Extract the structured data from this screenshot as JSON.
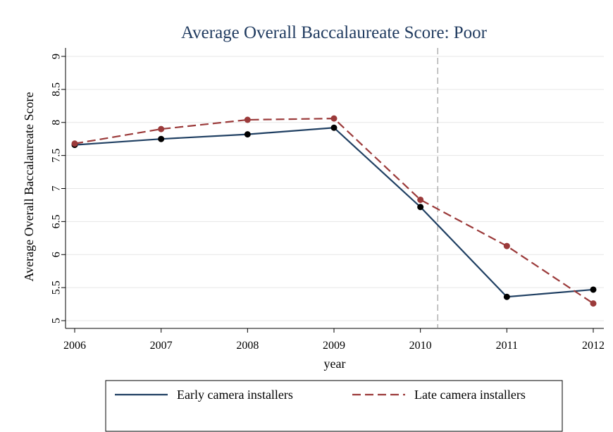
{
  "chart_data": {
    "type": "line",
    "title": "Average Overall Baccalaureate Score: Poor",
    "xlabel": "year",
    "ylabel": "Average Overall Baccalaureate Score",
    "x": [
      2006,
      2007,
      2008,
      2009,
      2010,
      2011,
      2012
    ],
    "xticks": [
      "2006",
      "2007",
      "2008",
      "2009",
      "2010",
      "2011",
      "2012"
    ],
    "yticks": [
      "5",
      "5.5",
      "6",
      "6.5",
      "7",
      "7.5",
      "8",
      "8.5",
      "9"
    ],
    "ylim": [
      5,
      9
    ],
    "xlim": [
      2006,
      2012
    ],
    "grid": true,
    "vline_x": 2010.2,
    "legend_position": "bottom",
    "series": [
      {
        "name": "Early camera installers",
        "style": "solid",
        "color": "#1f3f62",
        "marker_color": "#000000",
        "values": [
          7.66,
          7.75,
          7.82,
          7.92,
          6.72,
          5.36,
          5.47
        ]
      },
      {
        "name": "Late camera installers",
        "style": "dashed",
        "color": "#9b3a3a",
        "marker_color": "#9b3a3a",
        "values": [
          7.68,
          7.9,
          8.04,
          8.06,
          6.83,
          6.13,
          5.26
        ]
      }
    ]
  }
}
